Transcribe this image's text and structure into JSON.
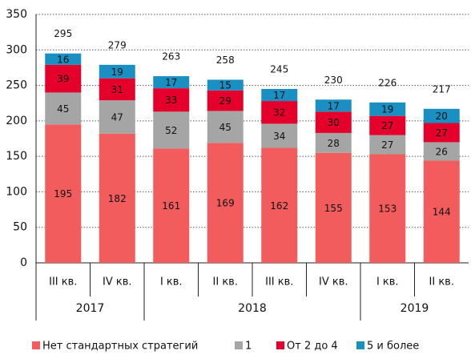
{
  "chart_data": {
    "type": "stacked_bar",
    "categories": [
      "III кв.",
      "IV кв.",
      "I кв.",
      "II кв.",
      "III кв.",
      "IV кв.",
      "I кв.",
      "II кв."
    ],
    "years": [
      "2017",
      "2017",
      "2018",
      "2018",
      "2018",
      "2018",
      "2019",
      "2019"
    ],
    "series": [
      {
        "name": "Нет стандартных стратегий",
        "color": "#f25c5c",
        "values": [
          195,
          182,
          161,
          169,
          162,
          155,
          153,
          144
        ]
      },
      {
        "name": "1",
        "color": "#a5a5a5",
        "values": [
          45,
          47,
          52,
          45,
          34,
          28,
          27,
          26
        ]
      },
      {
        "name": "От 2 до 4",
        "color": "#e5002b",
        "values": [
          39,
          31,
          33,
          29,
          32,
          30,
          27,
          27
        ]
      },
      {
        "name": "5 и более",
        "color": "#1a8fc2",
        "values": [
          16,
          19,
          17,
          15,
          17,
          17,
          19,
          20
        ]
      }
    ],
    "totals": [
      295,
      279,
      263,
      258,
      245,
      230,
      226,
      217
    ],
    "ylim": [
      0,
      350
    ],
    "yticks": [
      0,
      50,
      100,
      150,
      200,
      250,
      300,
      350
    ],
    "grid": true
  }
}
